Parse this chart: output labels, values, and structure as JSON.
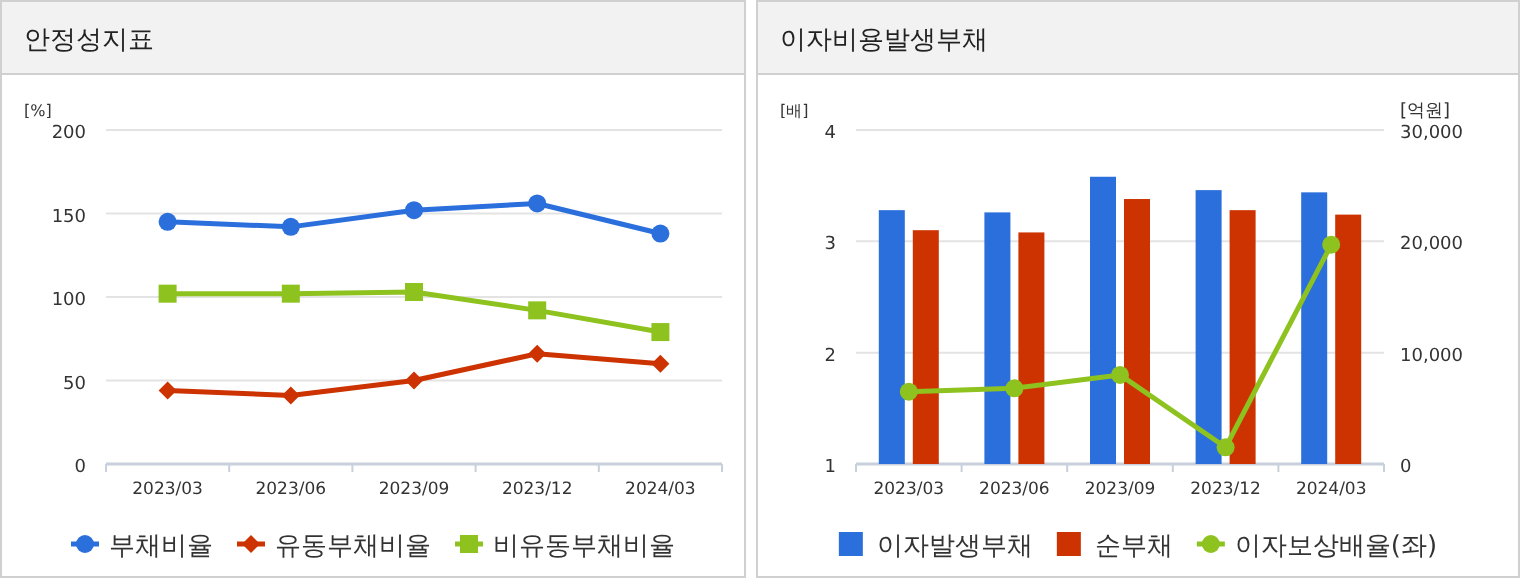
{
  "chart_data": [
    {
      "type": "line",
      "title": "안정성지표",
      "ylabel": "[%]",
      "categories": [
        "2023/03",
        "2023/06",
        "2023/09",
        "2023/12",
        "2024/03"
      ],
      "ylim": [
        0,
        200
      ],
      "yticks": [
        0,
        50,
        100,
        150,
        200
      ],
      "grid": "y",
      "legend": "bottom",
      "series": [
        {
          "name": "부채비율",
          "color": "#2a6fdb",
          "marker": "circle",
          "values": [
            145,
            142,
            152,
            156,
            138
          ]
        },
        {
          "name": "유동부채비율",
          "color": "#cc3300",
          "marker": "diamond",
          "values": [
            44,
            41,
            50,
            66,
            60
          ]
        },
        {
          "name": "비유동부채비율",
          "color": "#8dc21f",
          "marker": "square",
          "values": [
            102,
            102,
            103,
            92,
            79
          ]
        }
      ]
    },
    {
      "type": "bar",
      "title": "이자비용발생부채",
      "ylabel": "[배]",
      "y2label": "[억원]",
      "categories": [
        "2023/03",
        "2023/06",
        "2023/09",
        "2023/12",
        "2024/03"
      ],
      "ylim": [
        1,
        4
      ],
      "yticks": [
        1,
        2,
        3,
        4
      ],
      "y2lim": [
        0,
        30000
      ],
      "y2ticks": [
        {
          "value": 0,
          "label": "0"
        },
        {
          "value": 10000,
          "label": "10,000"
        },
        {
          "value": 20000,
          "label": "20,000"
        },
        {
          "value": 30000,
          "label": "30,000"
        }
      ],
      "grid": "y",
      "legend": "bottom",
      "series": [
        {
          "name": "이자발생부채",
          "axis": "y2",
          "color": "#2a6fdb",
          "values": [
            22800,
            22600,
            25800,
            24600,
            24400
          ]
        },
        {
          "name": "순부채",
          "axis": "y2",
          "color": "#cc3300",
          "values": [
            21000,
            20800,
            23800,
            22800,
            22400
          ]
        },
        {
          "name": "이자보상배율(좌)",
          "type": "line",
          "color": "#8dc21f",
          "marker": "circle",
          "values": [
            1.65,
            1.68,
            1.8,
            1.15,
            2.97
          ]
        }
      ]
    }
  ]
}
